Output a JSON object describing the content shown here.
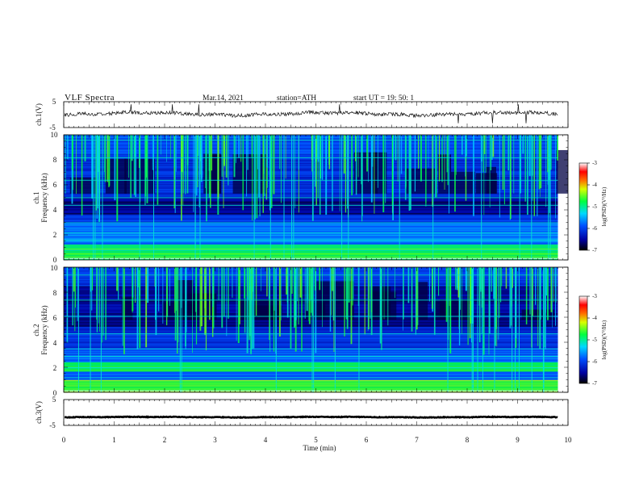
{
  "header": {
    "title": "VLF  Spectra",
    "date": "Mar.14, 2021",
    "station": "station=ATH",
    "start": "start  UT  =   19: 50: 1"
  },
  "colors": {
    "background": "#000044",
    "axis": "#000000",
    "waveform": "#111111"
  },
  "chart_data": [
    {
      "type": "line",
      "id": "ch1-waveform",
      "ylabel": "ch.1(V)",
      "ylim": [
        -5,
        5
      ],
      "yticks": [
        "5",
        "-5"
      ],
      "xlim": [
        0,
        10
      ],
      "trace_end_min": 9.8,
      "mean_level_v": 0.3,
      "note_visible": "noisy waveform trace"
    },
    {
      "type": "heatmap",
      "id": "ch1-spectrogram",
      "ylabel": "ch.1\nFrequency  (kHz)",
      "ylabel_line1": "ch.1",
      "ylabel_line2": "Frequency  (kHz)",
      "ylim": [
        0,
        10
      ],
      "yticks": [
        "0",
        "2",
        "4",
        "6",
        "8",
        "10"
      ],
      "xlim": [
        0,
        10
      ],
      "colorbar": {
        "label": "log(PSD)(V²/Hz)",
        "range": [
          -7,
          -3
        ],
        "ticks": [
          "-3",
          "-4",
          "-5",
          "-6",
          "-7"
        ]
      }
    },
    {
      "type": "heatmap",
      "id": "ch2-spectrogram",
      "ylabel_line1": "ch.2",
      "ylabel_line2": "Frequency  (kHz)",
      "ylim": [
        0,
        10
      ],
      "yticks": [
        "0",
        "2",
        "4",
        "6",
        "8",
        "10"
      ],
      "xlim": [
        0,
        10
      ],
      "colorbar": {
        "label": "log(PSD)(V²/Hz)",
        "range": [
          -7,
          -3
        ],
        "ticks": [
          "-3",
          "-4",
          "-5",
          "-6",
          "-7"
        ]
      }
    },
    {
      "type": "line",
      "id": "ch3-waveform",
      "ylabel": "ch.3(V)",
      "ylim": [
        -5,
        5
      ],
      "yticks": [
        "5",
        "-5"
      ],
      "xlim": [
        0,
        10
      ],
      "trace_end_min": 9.8,
      "mean_level_v": -1.8,
      "xlabel": "Time  (min)",
      "xticks": [
        "0",
        "1",
        "2",
        "3",
        "4",
        "5",
        "6",
        "7",
        "8",
        "9",
        "10"
      ]
    }
  ]
}
